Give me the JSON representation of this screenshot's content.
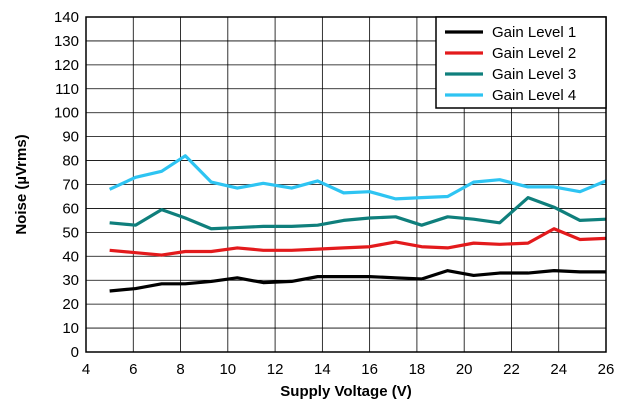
{
  "chart_data": {
    "type": "line",
    "xlabel": "Supply Voltage (V)",
    "ylabel": "Noise (µVrms)",
    "xlim": [
      4,
      26
    ],
    "ylim": [
      0,
      140
    ],
    "xticks": [
      4,
      6,
      8,
      10,
      12,
      14,
      16,
      18,
      20,
      22,
      24,
      26
    ],
    "yticks": [
      0,
      10,
      20,
      30,
      40,
      50,
      60,
      70,
      80,
      90,
      100,
      110,
      120,
      130,
      140
    ],
    "grid": true,
    "legend_position": "top-right",
    "x": [
      5,
      6.1,
      7.2,
      8.2,
      9.3,
      10.4,
      11.5,
      12.7,
      13.8,
      14.9,
      16,
      17.1,
      18.2,
      19.3,
      20.4,
      21.5,
      22.7,
      23.8,
      24.9,
      26
    ],
    "series": [
      {
        "name": "Gain Level 1",
        "color": "#000000",
        "values": [
          25.5,
          26.5,
          28.5,
          28.5,
          29.5,
          31,
          29,
          29.5,
          31.5,
          31.5,
          31.5,
          31,
          30.5,
          34,
          32,
          33,
          33,
          34,
          33.5,
          33.5
        ]
      },
      {
        "name": "Gain Level 2",
        "color": "#e31a1c",
        "values": [
          42.5,
          41.5,
          40.5,
          42,
          42,
          43.5,
          42.5,
          42.5,
          43,
          43.5,
          44,
          46,
          44,
          43.5,
          45.5,
          45,
          45.5,
          51.5,
          47,
          47.5
        ]
      },
      {
        "name": "Gain Level 3",
        "color": "#0f7f7c",
        "values": [
          54,
          53,
          59.5,
          56,
          51.5,
          52,
          52.5,
          52.5,
          53,
          55,
          56,
          56.5,
          53,
          56.5,
          55.5,
          54,
          64.5,
          60.5,
          55,
          55.5
        ]
      },
      {
        "name": "Gain Level 4",
        "color": "#2ec4f2",
        "values": [
          68,
          73,
          75.5,
          82,
          71,
          68.5,
          70.5,
          68.5,
          71.5,
          66.5,
          67,
          64,
          64.5,
          65,
          71,
          72,
          69,
          69,
          67,
          71.5
        ]
      }
    ]
  }
}
